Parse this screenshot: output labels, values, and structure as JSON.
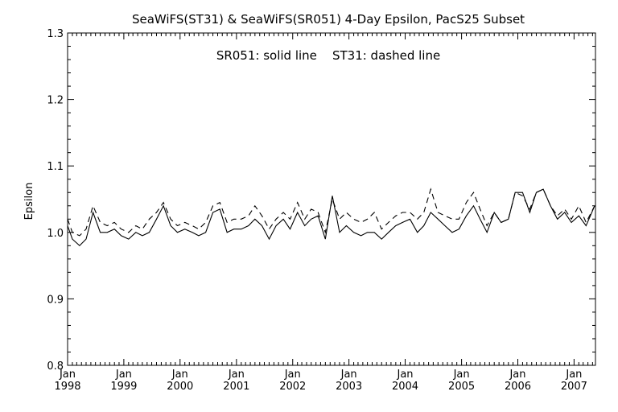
{
  "chart_data": {
    "type": "line",
    "title": "SeaWiFS(ST31) & SeaWiFS(SR051) 4-Day Epsilon, PacS25 Subset",
    "annotation": "SR051: solid line    ST31: dashed line",
    "xlabel": "",
    "ylabel": "Epsilon",
    "xlim": [
      "1998-01-01",
      "2007-05-20"
    ],
    "ylim": [
      0.8,
      1.3
    ],
    "y_ticks": [
      "0.8",
      "0.9",
      "1.0",
      "1.1",
      "1.2",
      "1.3"
    ],
    "x_ticks": [
      {
        "date": "1998-01-01",
        "month": "Jan",
        "year": "1998"
      },
      {
        "date": "1999-01-01",
        "month": "Jan",
        "year": "1999"
      },
      {
        "date": "2000-01-01",
        "month": "Jan",
        "year": "2000"
      },
      {
        "date": "2001-01-01",
        "month": "Jan",
        "year": "2001"
      },
      {
        "date": "2002-01-01",
        "month": "Jan",
        "year": "2002"
      },
      {
        "date": "2003-01-01",
        "month": "Jan",
        "year": "2003"
      },
      {
        "date": "2004-01-01",
        "month": "Jan",
        "year": "2004"
      },
      {
        "date": "2005-01-01",
        "month": "Jan",
        "year": "2005"
      },
      {
        "date": "2006-01-01",
        "month": "Jan",
        "year": "2006"
      },
      {
        "date": "2007-01-01",
        "month": "Jan",
        "year": "2007"
      }
    ],
    "grid": false,
    "series": [
      {
        "name": "SR051",
        "style": "solid",
        "x": [
          "1998-01-01",
          "1998-02-01",
          "1998-03-20",
          "1998-05-01",
          "1998-06-15",
          "1998-08-01",
          "1998-09-15",
          "1998-11-01",
          "1998-12-15",
          "1999-02-01",
          "1999-03-20",
          "1999-05-01",
          "1999-06-15",
          "1999-08-01",
          "1999-09-15",
          "1999-11-01",
          "1999-12-15",
          "2000-02-01",
          "2000-03-20",
          "2000-05-01",
          "2000-06-15",
          "2000-08-01",
          "2000-09-15",
          "2000-11-01",
          "2000-12-15",
          "2001-02-01",
          "2001-03-20",
          "2001-05-01",
          "2001-06-15",
          "2001-08-01",
          "2001-09-15",
          "2001-11-01",
          "2001-12-15",
          "2002-02-01",
          "2002-03-20",
          "2002-05-01",
          "2002-06-15",
          "2002-08-01",
          "2002-09-15",
          "2002-11-01",
          "2002-12-15",
          "2003-02-01",
          "2003-03-20",
          "2003-05-01",
          "2003-06-15",
          "2003-08-01",
          "2003-09-15",
          "2003-11-01",
          "2003-12-15",
          "2004-02-01",
          "2004-03-20",
          "2004-05-01",
          "2004-06-15",
          "2004-08-01",
          "2004-09-15",
          "2004-11-01",
          "2004-12-15",
          "2005-02-01",
          "2005-03-20",
          "2005-05-01",
          "2005-06-15",
          "2005-08-01",
          "2005-09-15",
          "2005-11-01",
          "2005-12-15",
          "2006-02-01",
          "2006-03-20",
          "2006-05-01",
          "2006-06-15",
          "2006-08-01",
          "2006-09-15",
          "2006-11-01",
          "2006-12-15",
          "2007-02-01",
          "2007-03-20",
          "2007-05-15"
        ],
        "y": [
          1.01,
          0.99,
          0.98,
          0.99,
          1.03,
          1.0,
          1.0,
          1.005,
          0.995,
          0.99,
          1.0,
          0.995,
          1.0,
          1.02,
          1.04,
          1.01,
          1.0,
          1.005,
          1.0,
          0.995,
          1.0,
          1.03,
          1.035,
          1.0,
          1.005,
          1.005,
          1.01,
          1.02,
          1.01,
          0.99,
          1.01,
          1.02,
          1.005,
          1.03,
          1.01,
          1.02,
          1.025,
          0.99,
          1.055,
          1.0,
          1.01,
          1.0,
          0.995,
          1.0,
          1.0,
          0.99,
          1.0,
          1.01,
          1.015,
          1.02,
          1.0,
          1.01,
          1.03,
          1.02,
          1.01,
          1.0,
          1.005,
          1.025,
          1.04,
          1.02,
          1.0,
          1.03,
          1.015,
          1.02,
          1.06,
          1.06,
          1.03,
          1.06,
          1.065,
          1.04,
          1.02,
          1.03,
          1.015,
          1.025,
          1.01,
          1.04
        ]
      },
      {
        "name": "ST31",
        "style": "dashed",
        "x": [
          "1998-01-01",
          "1998-02-01",
          "1998-03-20",
          "1998-05-01",
          "1998-06-15",
          "1998-08-01",
          "1998-09-15",
          "1998-11-01",
          "1998-12-15",
          "1999-02-01",
          "1999-03-20",
          "1999-05-01",
          "1999-06-15",
          "1999-08-01",
          "1999-09-15",
          "1999-11-01",
          "1999-12-15",
          "2000-02-01",
          "2000-03-20",
          "2000-05-01",
          "2000-06-15",
          "2000-08-01",
          "2000-09-15",
          "2000-11-01",
          "2000-12-15",
          "2001-02-01",
          "2001-03-20",
          "2001-05-01",
          "2001-06-15",
          "2001-08-01",
          "2001-09-15",
          "2001-11-01",
          "2001-12-15",
          "2002-02-01",
          "2002-03-20",
          "2002-05-01",
          "2002-06-15",
          "2002-08-01",
          "2002-09-15",
          "2002-11-01",
          "2002-12-15",
          "2003-02-01",
          "2003-03-20",
          "2003-05-01",
          "2003-06-15",
          "2003-08-01",
          "2003-09-15",
          "2003-11-01",
          "2003-12-15",
          "2004-02-01",
          "2004-03-20",
          "2004-05-01",
          "2004-06-15",
          "2004-08-01",
          "2004-09-15",
          "2004-11-01",
          "2004-12-15",
          "2005-02-01",
          "2005-03-20",
          "2005-05-01",
          "2005-06-15",
          "2005-08-01",
          "2005-09-15",
          "2005-11-01",
          "2005-12-15",
          "2006-02-01",
          "2006-03-20",
          "2006-05-01",
          "2006-06-15",
          "2006-08-01",
          "2006-09-15",
          "2006-11-01",
          "2006-12-15",
          "2007-02-01",
          "2007-03-20",
          "2007-05-15"
        ],
        "y": [
          1.02,
          1.0,
          0.995,
          1.005,
          1.04,
          1.015,
          1.01,
          1.015,
          1.005,
          1.0,
          1.01,
          1.005,
          1.02,
          1.03,
          1.045,
          1.02,
          1.01,
          1.015,
          1.01,
          1.005,
          1.015,
          1.04,
          1.045,
          1.015,
          1.02,
          1.02,
          1.025,
          1.04,
          1.025,
          1.005,
          1.02,
          1.03,
          1.02,
          1.045,
          1.02,
          1.035,
          1.03,
          1.0,
          1.05,
          1.02,
          1.03,
          1.02,
          1.015,
          1.02,
          1.03,
          1.005,
          1.015,
          1.025,
          1.03,
          1.03,
          1.02,
          1.03,
          1.065,
          1.03,
          1.025,
          1.02,
          1.02,
          1.045,
          1.06,
          1.035,
          1.01,
          1.03,
          1.015,
          1.02,
          1.06,
          1.055,
          1.035,
          1.06,
          1.065,
          1.04,
          1.025,
          1.035,
          1.02,
          1.04,
          1.015,
          1.04
        ]
      }
    ]
  }
}
